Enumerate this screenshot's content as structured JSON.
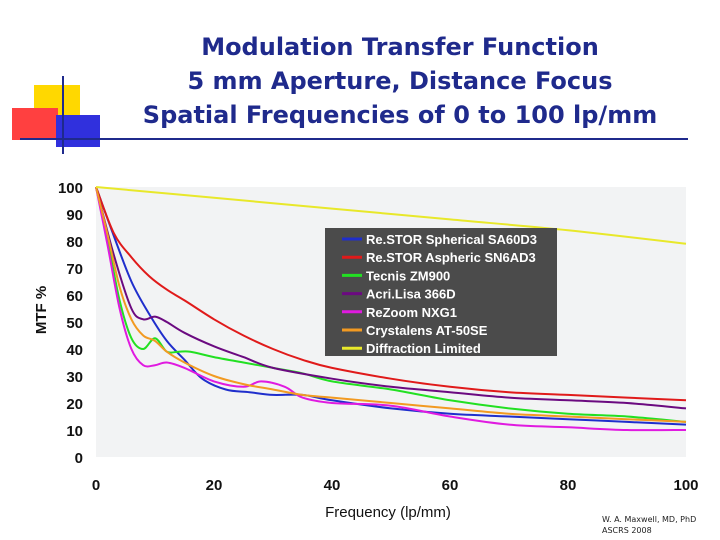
{
  "slide": {
    "title_lines": [
      "Modulation Transfer Function",
      "5 mm Aperture, Distance Focus",
      "Spatial Frequencies of 0 to 100 lp/mm"
    ],
    "credit_lines": [
      "W. A. Maxwell, MD, PhD",
      "ASCRS 2008"
    ],
    "colors": {
      "title": "#1f2a8c",
      "rule": "#1f2a8c",
      "plot_bg": "#f2f3f4",
      "legend_bg": "#4b4b4b"
    }
  },
  "chart_data": {
    "type": "line",
    "title": "Modulation Transfer Function",
    "xlabel": "Frequency (lp/mm)",
    "ylabel": "MTF %",
    "xlim": [
      0,
      100
    ],
    "ylim": [
      0,
      100
    ],
    "x_ticks": [
      0,
      20,
      40,
      60,
      80,
      100
    ],
    "y_ticks": [
      0,
      10,
      20,
      30,
      40,
      50,
      60,
      70,
      80,
      90,
      100
    ],
    "grid": false,
    "legend_position": "top-right",
    "series": [
      {
        "name": "Re.STOR Spherical SA60D3",
        "color": "#1f2ecc",
        "x": [
          0,
          3,
          6,
          9,
          12,
          15,
          18,
          22,
          26,
          30,
          35,
          40,
          50,
          60,
          70,
          80,
          90,
          100
        ],
        "y": [
          100,
          82,
          65,
          53,
          43,
          36,
          29,
          25,
          24,
          23,
          23,
          21,
          18,
          16,
          15,
          14,
          13,
          12
        ]
      },
      {
        "name": "Re.STOR Aspheric SN6AD3",
        "color": "#e01a1a",
        "x": [
          0,
          3,
          6,
          9,
          12,
          15,
          20,
          25,
          30,
          35,
          40,
          50,
          60,
          70,
          80,
          90,
          100
        ],
        "y": [
          100,
          83,
          74,
          67,
          62,
          58,
          51,
          45,
          40,
          36,
          33,
          29,
          26,
          24,
          23,
          22,
          21
        ]
      },
      {
        "name": "Tecnis ZM900",
        "color": "#22e022",
        "x": [
          0,
          2,
          4,
          6,
          8,
          10,
          12,
          14,
          16,
          20,
          25,
          30,
          35,
          40,
          50,
          60,
          70,
          80,
          90,
          100
        ],
        "y": [
          100,
          80,
          58,
          44,
          40,
          44,
          39,
          39,
          39,
          37,
          35,
          33,
          31,
          28,
          25,
          21,
          18,
          16,
          15,
          13
        ]
      },
      {
        "name": "Acri.Lisa 366D",
        "color": "#6b0a80",
        "x": [
          0,
          3,
          6,
          8,
          10,
          12,
          15,
          20,
          25,
          30,
          40,
          50,
          60,
          70,
          80,
          90,
          100
        ],
        "y": [
          100,
          75,
          55,
          51,
          52,
          50,
          46,
          41,
          37,
          33,
          29,
          26,
          24,
          22,
          21,
          20,
          18
        ]
      },
      {
        "name": "ReZoom NXG1",
        "color": "#e01ae0",
        "x": [
          0,
          2,
          4,
          6,
          8,
          10,
          12,
          15,
          20,
          25,
          28,
          32,
          35,
          40,
          50,
          60,
          70,
          80,
          90,
          100
        ],
        "y": [
          100,
          78,
          55,
          40,
          34,
          34,
          35,
          33,
          28,
          26,
          28,
          26,
          22,
          20,
          19,
          15,
          12,
          11,
          10,
          10
        ]
      },
      {
        "name": "Crystalens AT-50SE",
        "color": "#f29a22",
        "x": [
          0,
          2,
          4,
          6,
          8,
          10,
          12,
          15,
          20,
          25,
          30,
          35,
          40,
          50,
          60,
          70,
          80,
          90,
          100
        ],
        "y": [
          100,
          82,
          63,
          51,
          45,
          43,
          39,
          35,
          30,
          27,
          25,
          23,
          22,
          20,
          18,
          16,
          15,
          14,
          13
        ]
      },
      {
        "name": "Diffraction Limited",
        "color": "#e8e82a",
        "x": [
          0,
          20,
          40,
          60,
          80,
          100
        ],
        "y": [
          100,
          96,
          92,
          88,
          84,
          79
        ]
      }
    ]
  }
}
